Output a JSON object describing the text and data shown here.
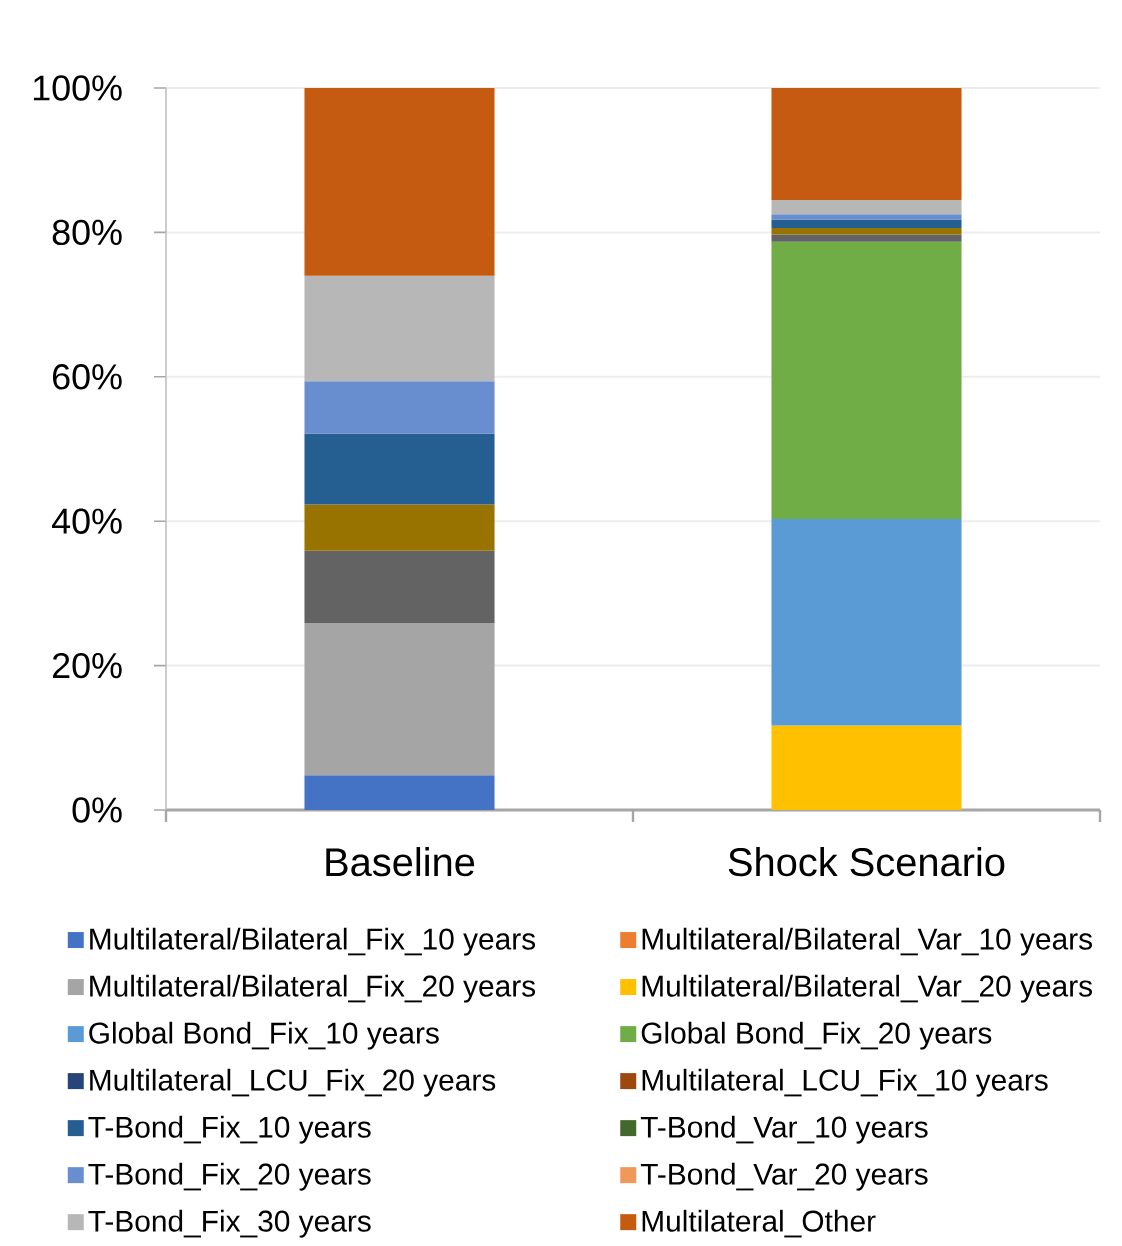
{
  "chart_data": {
    "type": "bar",
    "stacked": true,
    "categories": [
      "Baseline",
      "Shock Scenario"
    ],
    "series": [
      {
        "name": "Multilateral/Bilateral_Fix_10 years",
        "color": "#4472c4",
        "values": [
          4.8,
          0
        ]
      },
      {
        "name": "Multilateral/Bilateral_Var_10 years",
        "color": "#ed7d31",
        "values": [
          0,
          0
        ]
      },
      {
        "name": "Multilateral/Bilateral_Fix_20 years",
        "color": "#a5a5a5",
        "values": [
          21.1,
          0
        ]
      },
      {
        "name": "Multilateral/Bilateral_Var_20 years",
        "color": "#ffc000",
        "values": [
          0,
          11.7
        ]
      },
      {
        "name": "Global Bond_Fix_10 years",
        "color": "#5b9bd5",
        "values": [
          0,
          28.6
        ]
      },
      {
        "name": "Global Bond_Fix_20 years",
        "color": "#70ad47",
        "values": [
          0,
          38.4
        ]
      },
      {
        "name": "Multilateral_LCU_Fix_20 years",
        "color": "#264478",
        "values": [
          0,
          0
        ]
      },
      {
        "name": "Multilateral_LCU_Fix_10 years",
        "color": "#9e480e",
        "values": [
          0,
          0
        ]
      },
      {
        "color": "#636363",
        "values": [
          10.0,
          1.0
        ]
      },
      {
        "color": "#997300",
        "values": [
          6.4,
          0.9
        ]
      },
      {
        "name": "T-Bond_Fix_10 years",
        "color": "#255e91",
        "values": [
          9.8,
          1.2
        ]
      },
      {
        "name": "T-Bond_Var_10 years",
        "color": "#43682b",
        "values": [
          0,
          0
        ]
      },
      {
        "name": "T-Bond_Fix_20 years",
        "color": "#698ed0",
        "values": [
          7.3,
          0.7
        ]
      },
      {
        "name": "T-Bond_Var_20 years",
        "color": "#f1975a",
        "values": [
          0,
          0
        ]
      },
      {
        "name": "T-Bond_Fix_30 years",
        "color": "#b7b7b7",
        "values": [
          14.6,
          2.0
        ]
      },
      {
        "name": "Multilateral_Other",
        "color": "#c55a11",
        "values": [
          26.0,
          15.5
        ]
      }
    ],
    "ylim": [
      0,
      100
    ],
    "yticks": [
      {
        "value": 0,
        "label": "0%"
      },
      {
        "value": 20,
        "label": "20%"
      },
      {
        "value": 40,
        "label": "40%"
      },
      {
        "value": 60,
        "label": "60%"
      },
      {
        "value": 80,
        "label": "80%"
      },
      {
        "value": 100,
        "label": "100%"
      }
    ],
    "grid": "y",
    "legend": "bottom"
  }
}
